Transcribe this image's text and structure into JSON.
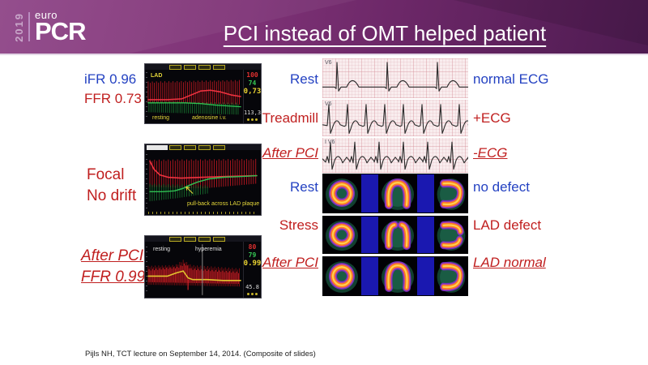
{
  "slide": {
    "title": "PCI instead of OMT helped patient",
    "footer": "Pijls NH, TCT lecture on September 14, 2014. (Composite of slides)",
    "logo": {
      "year": "2019",
      "euro": "euro",
      "pcr": "PCR"
    }
  },
  "colors": {
    "header_purple": "#7e3276",
    "label_blue": "#2442c2",
    "label_red": "#c01f1f"
  },
  "left_column": {
    "case1": {
      "label1": "iFR 0.96",
      "label2": "FFR 0.73",
      "screenshot": {
        "vessel": "LAD",
        "phase_left": "resting",
        "phase_right": "adenosine i.v.",
        "sidebar": {
          "pa": "100",
          "pd": "74",
          "ratio": "0,73",
          "extra": "113,3"
        }
      }
    },
    "case2": {
      "label1": "Focal",
      "label2": "No drift",
      "screenshot": {
        "annotation": "pull-back across LAD plaque"
      }
    },
    "case3": {
      "label1": "After PCI",
      "label2": "FFR 0.99",
      "screenshot": {
        "phase_left": "resting",
        "phase_right": "hyperemia",
        "sidebar": {
          "pa": "80",
          "pd": "79",
          "ratio": "0.99",
          "extra": "45.8"
        }
      }
    }
  },
  "right_column": {
    "ecg_rows": [
      {
        "label": "Rest",
        "lead": "V6",
        "result": "normal ECG",
        "emphasis": false
      },
      {
        "label": "Treadmill",
        "lead": "V6",
        "result": "+ECG",
        "emphasis": false
      },
      {
        "label": "After PCI",
        "lead": "I V6",
        "result": "-ECG",
        "emphasis": true
      }
    ],
    "spect_rows": [
      {
        "label": "Rest",
        "result": "no defect",
        "emphasis": false,
        "defect": false
      },
      {
        "label": "Stress",
        "result": "LAD defect",
        "emphasis": false,
        "defect": true
      },
      {
        "label": "After PCI",
        "result": "LAD normal",
        "emphasis": true,
        "defect": false
      }
    ]
  }
}
